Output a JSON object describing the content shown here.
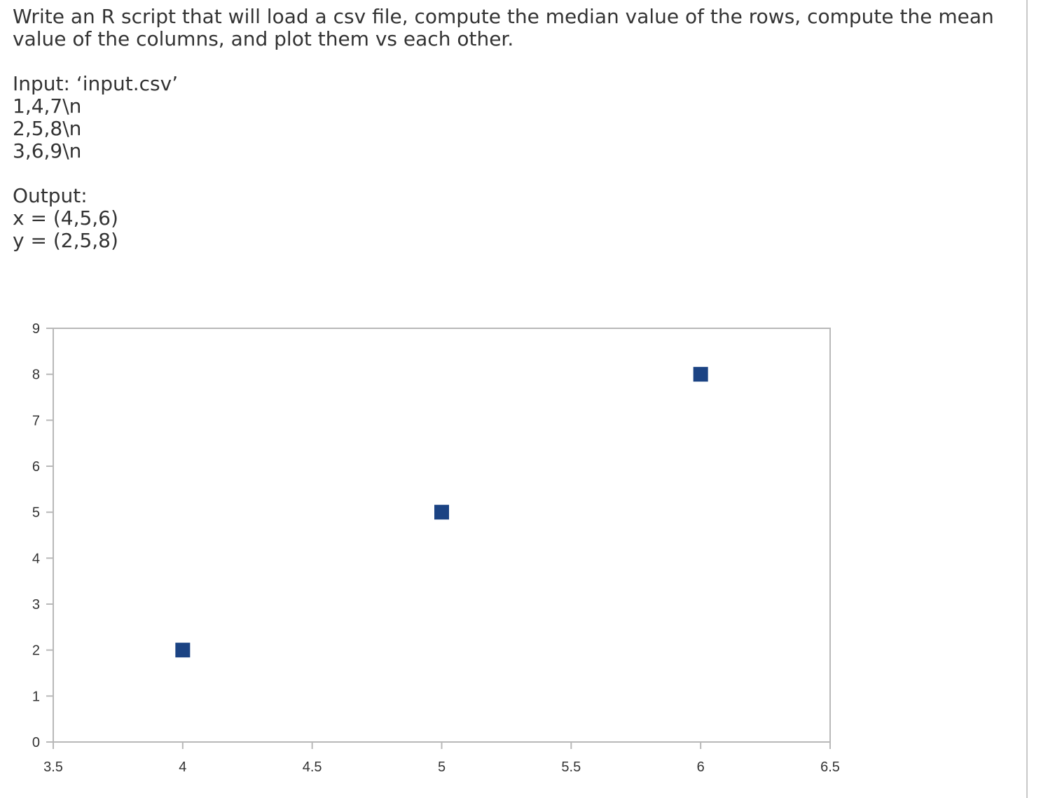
{
  "question": {
    "prompt": "Write an R script that will load a csv file, compute the median value of the rows, compute the mean value of the columns, and plot them vs each other.",
    "input_label": "Input: ‘input.csv’",
    "input_lines": [
      "1,4,7\\n",
      "2,5,8\\n",
      "3,6,9\\n"
    ],
    "output_label": "Output:",
    "output_lines": [
      "x = (4,5,6)",
      "y = (2,5,8)"
    ]
  },
  "chart_data": {
    "type": "scatter",
    "x": [
      4,
      5,
      6
    ],
    "y": [
      2,
      5,
      8
    ],
    "xlim": [
      3.5,
      6.5
    ],
    "ylim": [
      0,
      9
    ],
    "xticks": [
      "3.5",
      "4",
      "4.5",
      "5",
      "5.5",
      "6",
      "6.5"
    ],
    "yticks": [
      "0",
      "1",
      "2",
      "3",
      "4",
      "5",
      "6",
      "7",
      "8",
      "9"
    ],
    "xlabel": "",
    "ylabel": "",
    "title": "",
    "marker": "square",
    "marker_color": "#1b4383",
    "grid": false
  }
}
